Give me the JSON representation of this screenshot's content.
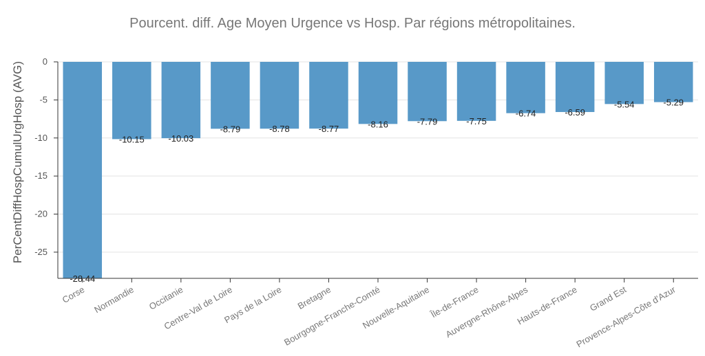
{
  "chart_data": {
    "type": "bar",
    "title": "Pourcent. diff. Age Moyen Urgence vs Hosp. Par régions métropolitaines.",
    "xlabel": "",
    "ylabel": "PerCentDiffHospCumulUrgHosp (AVG)",
    "ylim": [
      -28.44,
      0
    ],
    "yticks": [
      0,
      -5,
      -10,
      -15,
      -20,
      -25
    ],
    "grid": true,
    "bar_color": "#5899c8",
    "categories": [
      "Corse",
      "Normandie",
      "Occitanie",
      "Centre-Val de Loire",
      "Pays de la Loire",
      "Bretagne",
      "Bourgogne-Franche-Comté",
      "Nouvelle-Aquitaine",
      "Île-de-France",
      "Auvergne-Rhône-Alpes",
      "Hauts-de-France",
      "Grand Est",
      "Provence-Alpes-Côte d'Azur"
    ],
    "values": [
      -28.44,
      -10.15,
      -10.03,
      -8.79,
      -8.78,
      -8.77,
      -8.16,
      -7.79,
      -7.75,
      -6.74,
      -6.59,
      -5.54,
      -5.29
    ],
    "value_labels": [
      "-28.44",
      "-10.15",
      "-10.03",
      "-8.79",
      "-8.78",
      "-8.77",
      "-8.16",
      "-7.79",
      "-7.75",
      "-6.74",
      "-6.59",
      "-5.54",
      "-5.29"
    ]
  }
}
